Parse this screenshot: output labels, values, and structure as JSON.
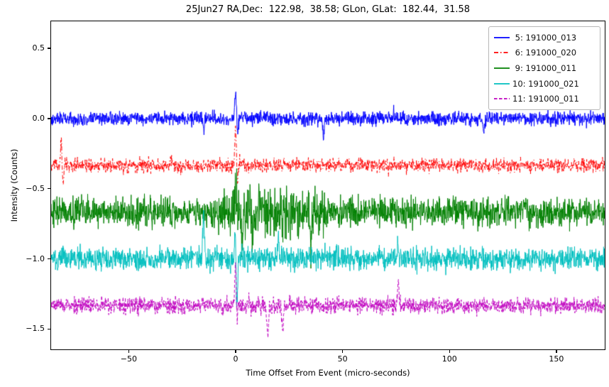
{
  "chart_data": {
    "type": "line",
    "title": "25Jun27 RA,Dec:  122.98,  38.58; GLon, GLat:  182.44,  31.58",
    "xlabel": "Time Offset From Event (micro-seconds)",
    "ylabel": "Intensity (Counts)",
    "xlim": [
      -86.3,
      172.6
    ],
    "ylim": [
      -1.645,
      0.693
    ],
    "xticks": [
      {
        "value": -50,
        "label": "−50"
      },
      {
        "value": 0,
        "label": "0"
      },
      {
        "value": 50,
        "label": "50"
      },
      {
        "value": 100,
        "label": "100"
      },
      {
        "value": 150,
        "label": "150"
      }
    ],
    "yticks": [
      {
        "value": 0.5,
        "label": "0.5"
      },
      {
        "value": 0.0,
        "label": "0.0"
      },
      {
        "value": -0.5,
        "label": "−0.5"
      },
      {
        "value": -1.0,
        "label": "−1.0"
      },
      {
        "value": -1.5,
        "label": "−1.5"
      }
    ],
    "grid": false,
    "legend_position": "upper right",
    "n_points": 2000,
    "series": [
      {
        "name": " 5: 191000_013",
        "color": "#0000ff",
        "linestyle": "solid",
        "baseline": 0.0,
        "noise_sigma": 0.024,
        "seed": 101,
        "spikes": [
          {
            "t": 0,
            "amp": 0.2
          },
          {
            "t": 0.9,
            "amp": -0.1
          },
          {
            "t": -15,
            "amp": -0.085
          },
          {
            "t": 41,
            "amp": -0.13
          },
          {
            "t": 116,
            "amp": -0.1
          }
        ]
      },
      {
        "name": " 6: 191000_020",
        "color": "#ff0000",
        "linestyle": "dashdot",
        "baseline": -0.333,
        "noise_sigma": 0.024,
        "seed": 202,
        "spikes": [
          {
            "t": -81.5,
            "amp": 0.17
          },
          {
            "t": -80.8,
            "amp": -0.16
          },
          {
            "t": 0,
            "amp": 0.31
          },
          {
            "t": 0.7,
            "amp": -0.12
          },
          {
            "t": -30,
            "amp": 0.06
          }
        ]
      },
      {
        "name": " 9: 191000_011",
        "color": "#008000",
        "linestyle": "solid",
        "baseline": -0.667,
        "noise_sigma": 0.05,
        "seed": 303,
        "burst": {
          "from": -8,
          "to": 42,
          "factor": 1.7
        },
        "spikes": [
          {
            "t": 0,
            "amp": 0.2
          },
          {
            "t": 3,
            "amp": -0.33
          },
          {
            "t": 8,
            "amp": -0.25
          },
          {
            "t": 35,
            "amp": -0.22
          },
          {
            "t": -40,
            "amp": 0.1
          }
        ]
      },
      {
        "name": "10: 191000_021",
        "color": "#00bfbf",
        "linestyle": "solid",
        "baseline": -1.0,
        "noise_sigma": 0.04,
        "seed": 404,
        "spikes": [
          {
            "t": -15,
            "amp": 0.36
          },
          {
            "t": 0,
            "amp": 0.31
          },
          {
            "t": 0.5,
            "amp": -0.48
          },
          {
            "t": 20,
            "amp": 0.15
          },
          {
            "t": 76,
            "amp": 0.12
          }
        ]
      },
      {
        "name": "11: 191000_011",
        "color": "#bf00bf",
        "linestyle": "dashed",
        "baseline": -1.333,
        "noise_sigma": 0.028,
        "seed": 505,
        "spikes": [
          {
            "t": 0,
            "amp": 0.38
          },
          {
            "t": 0.5,
            "amp": -0.17
          },
          {
            "t": 15,
            "amp": -0.24
          },
          {
            "t": 22,
            "amp": -0.19
          },
          {
            "t": 76,
            "amp": 0.18
          },
          {
            "t": -6,
            "amp": -0.09
          }
        ]
      }
    ]
  }
}
